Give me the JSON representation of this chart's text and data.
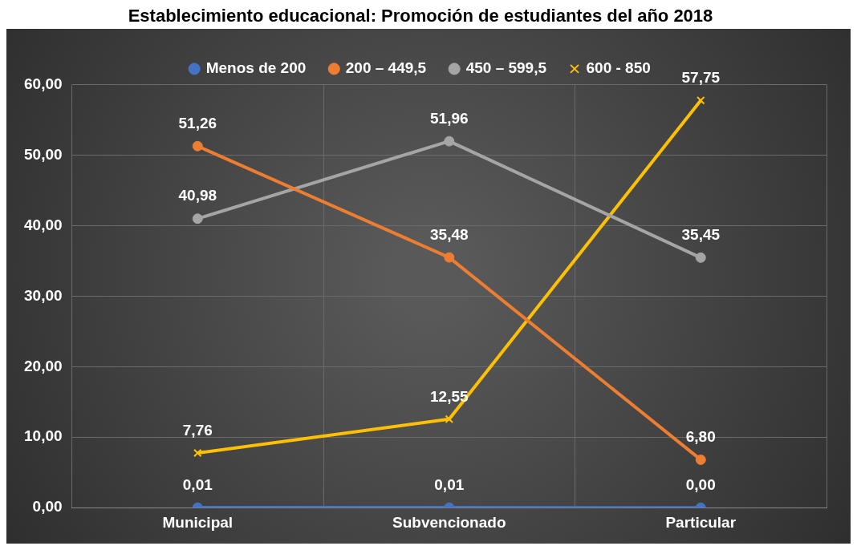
{
  "chart_data": {
    "type": "line",
    "title": "Establecimiento educacional: Promoción de estudiantes del año 2018",
    "categories": [
      "Municipal",
      "Subvencionado",
      "Particular"
    ],
    "series": [
      {
        "name": "Menos de 200",
        "color": "#4472c4",
        "marker": "circle",
        "values": [
          0.01,
          0.01,
          0.0
        ],
        "value_labels": [
          "0,01",
          "0,01",
          "0,00"
        ]
      },
      {
        "name": "200 – 449,5",
        "color": "#ed7d31",
        "marker": "circle",
        "values": [
          51.26,
          35.48,
          6.8
        ],
        "value_labels": [
          "51,26",
          "35,48",
          "6,80"
        ]
      },
      {
        "name": "450 – 599,5",
        "color": "#a5a5a5",
        "marker": "circle",
        "values": [
          40.98,
          51.96,
          35.45
        ],
        "value_labels": [
          "40,98",
          "51,96",
          "35,45"
        ]
      },
      {
        "name": "600 - 850",
        "color": "#ffc000",
        "marker": "cross",
        "values": [
          7.76,
          12.55,
          57.75
        ],
        "value_labels": [
          "7,76",
          "12,55",
          "57,75"
        ]
      }
    ],
    "ylim": [
      0,
      60
    ],
    "yticks": [
      {
        "value": 0,
        "label": "0,00"
      },
      {
        "value": 10,
        "label": "10,00"
      },
      {
        "value": 20,
        "label": "20,00"
      },
      {
        "value": 30,
        "label": "30,00"
      },
      {
        "value": 40,
        "label": "40,00"
      },
      {
        "value": 50,
        "label": "50,00"
      },
      {
        "value": 60,
        "label": "60,00"
      }
    ],
    "grid": true,
    "legend": "top"
  }
}
